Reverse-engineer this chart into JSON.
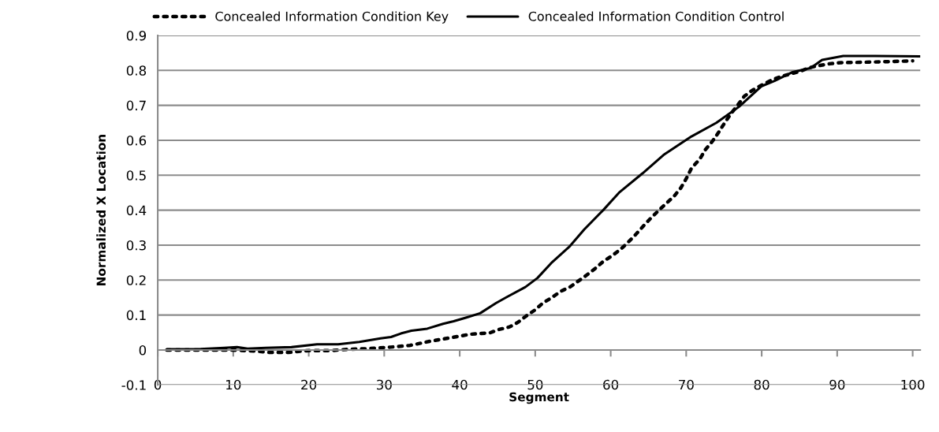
{
  "chart_data": {
    "type": "line",
    "xlabel": "Segment",
    "ylabel": "Normalized X Location",
    "xlim": [
      0,
      101
    ],
    "xticks": [
      0,
      10,
      20,
      30,
      40,
      50,
      60,
      70,
      80,
      90,
      100
    ],
    "ylim": [
      -0.1,
      0.9
    ],
    "yticks": [
      -0.1,
      0,
      0.1,
      0.2,
      0.3,
      0.4,
      0.5,
      0.6,
      0.7,
      0.8,
      0.9
    ],
    "grid": "y",
    "legend": "top",
    "marker": "none",
    "series": [
      {
        "name": "Concealed Information Condition Key",
        "color": "#000000",
        "line_style": "dotted",
        "x": [
          1.2,
          4,
          6.7,
          9.3,
          11.9,
          13.3,
          14.6,
          16,
          17.3,
          18.7,
          20,
          22.7,
          25.4,
          28.1,
          30.8,
          33.4,
          36.1,
          38.8,
          41.4,
          44,
          45.1,
          46.6,
          47.7,
          48.8,
          50,
          51,
          52.2,
          53.4,
          54.6,
          55.7,
          56.8,
          58,
          59,
          60.2,
          61.3,
          62.3,
          63.3,
          64.3,
          65.3,
          66.3,
          67.3,
          68.4,
          69.3,
          70,
          70.7,
          71.8,
          72.5,
          73.5,
          74.3,
          75.1,
          75.9,
          76.8,
          77.7,
          78.7,
          80,
          81.2,
          82.6,
          83.7,
          85.2,
          86.3,
          87.7,
          89,
          90.5,
          95,
          100
        ],
        "values": [
          0,
          0,
          0,
          0,
          -0.002,
          -0.004,
          -0.007,
          -0.007,
          -0.007,
          -0.004,
          -0.002,
          -0.002,
          0.002,
          0.004,
          0.008,
          0.013,
          0.025,
          0.035,
          0.045,
          0.049,
          0.058,
          0.066,
          0.079,
          0.097,
          0.115,
          0.134,
          0.15,
          0.168,
          0.18,
          0.197,
          0.214,
          0.234,
          0.253,
          0.27,
          0.288,
          0.308,
          0.33,
          0.354,
          0.377,
          0.398,
          0.418,
          0.44,
          0.464,
          0.49,
          0.52,
          0.546,
          0.572,
          0.598,
          0.623,
          0.65,
          0.675,
          0.7,
          0.726,
          0.742,
          0.758,
          0.771,
          0.783,
          0.789,
          0.798,
          0.808,
          0.814,
          0.819,
          0.822,
          0.824,
          0.827
        ]
      },
      {
        "name": "Concealed Information Condition Control",
        "color": "#000000",
        "line_style": "solid",
        "x": [
          1.2,
          5.3,
          8.8,
          10.5,
          11.9,
          14.3,
          17.7,
          21.1,
          23.9,
          26.7,
          29.5,
          30.9,
          32.2,
          33.6,
          35.7,
          37.8,
          39.2,
          40.9,
          42.7,
          44.8,
          46.2,
          48.7,
          50.3,
          52.1,
          54.5,
          56.5,
          59,
          61.1,
          64.2,
          67,
          70.7,
          74,
          77,
          80,
          81.7,
          84.1,
          86.5,
          88,
          90.8,
          95,
          101
        ],
        "values": [
          0.002,
          0.002,
          0.006,
          0.008,
          0.004,
          0.006,
          0.008,
          0.016,
          0.016,
          0.023,
          0.033,
          0.037,
          0.047,
          0.055,
          0.061,
          0.075,
          0.082,
          0.093,
          0.105,
          0.134,
          0.151,
          0.18,
          0.206,
          0.248,
          0.295,
          0.345,
          0.4,
          0.45,
          0.505,
          0.558,
          0.611,
          0.65,
          0.696,
          0.755,
          0.77,
          0.795,
          0.807,
          0.83,
          0.841,
          0.841,
          0.84
        ]
      }
    ]
  }
}
